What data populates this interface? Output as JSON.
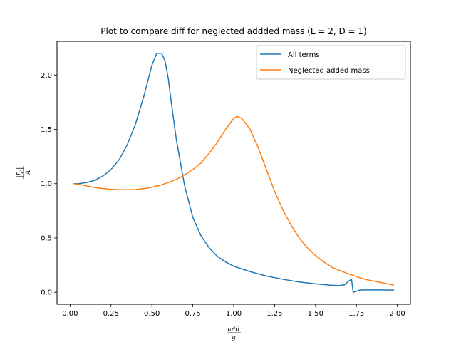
{
  "chart_data": {
    "type": "line",
    "title": "Plot to compare diff for neglected addded mass (L = 2, D = 1)",
    "xlabel": {
      "numerator": "ω²d",
      "denominator": "g"
    },
    "ylabel": {
      "numerator": "|ξ₂|",
      "denominator": "A"
    },
    "xlim": [
      -0.08,
      2.08
    ],
    "ylim": [
      -0.11,
      2.31
    ],
    "xticks": [
      0.0,
      0.25,
      0.5,
      0.75,
      1.0,
      1.25,
      1.5,
      1.75,
      2.0
    ],
    "xtick_labels": [
      "0.00",
      "0.25",
      "0.50",
      "0.75",
      "1.00",
      "1.25",
      "1.50",
      "1.75",
      "2.00"
    ],
    "yticks": [
      0.0,
      0.5,
      1.0,
      1.5,
      2.0
    ],
    "ytick_labels": [
      "0.0",
      "0.5",
      "1.0",
      "1.5",
      "2.0"
    ],
    "grid": false,
    "legend_position": "top-right",
    "series": [
      {
        "name": "All terms",
        "color": "#1f77b4",
        "points": [
          [
            0.02,
            1.0
          ],
          [
            0.05,
            1.0
          ],
          [
            0.1,
            1.01
          ],
          [
            0.15,
            1.03
          ],
          [
            0.2,
            1.07
          ],
          [
            0.25,
            1.13
          ],
          [
            0.3,
            1.22
          ],
          [
            0.35,
            1.36
          ],
          [
            0.4,
            1.55
          ],
          [
            0.45,
            1.8
          ],
          [
            0.5,
            2.09
          ],
          [
            0.53,
            2.2
          ],
          [
            0.56,
            2.2
          ],
          [
            0.58,
            2.13
          ],
          [
            0.6,
            1.97
          ],
          [
            0.62,
            1.73
          ],
          [
            0.65,
            1.4
          ],
          [
            0.7,
            0.98
          ],
          [
            0.75,
            0.69
          ],
          [
            0.8,
            0.52
          ],
          [
            0.85,
            0.41
          ],
          [
            0.9,
            0.33
          ],
          [
            0.95,
            0.28
          ],
          [
            1.0,
            0.24
          ],
          [
            1.1,
            0.19
          ],
          [
            1.2,
            0.15
          ],
          [
            1.3,
            0.12
          ],
          [
            1.4,
            0.095
          ],
          [
            1.5,
            0.078
          ],
          [
            1.6,
            0.065
          ],
          [
            1.65,
            0.062
          ],
          [
            1.68,
            0.07
          ],
          [
            1.7,
            0.1
          ],
          [
            1.72,
            0.12
          ],
          [
            1.73,
            0.0
          ],
          [
            1.75,
            0.01
          ],
          [
            1.77,
            0.02
          ],
          [
            1.8,
            0.022
          ],
          [
            1.9,
            0.022
          ],
          [
            1.98,
            0.02
          ]
        ]
      },
      {
        "name": "Neglected added mass",
        "color": "#ff7f0e",
        "points": [
          [
            0.02,
            1.0
          ],
          [
            0.05,
            0.995
          ],
          [
            0.1,
            0.98
          ],
          [
            0.15,
            0.965
          ],
          [
            0.2,
            0.955
          ],
          [
            0.25,
            0.948
          ],
          [
            0.3,
            0.944
          ],
          [
            0.35,
            0.944
          ],
          [
            0.4,
            0.946
          ],
          [
            0.45,
            0.954
          ],
          [
            0.5,
            0.967
          ],
          [
            0.55,
            0.985
          ],
          [
            0.6,
            1.01
          ],
          [
            0.65,
            1.04
          ],
          [
            0.7,
            1.08
          ],
          [
            0.75,
            1.13
          ],
          [
            0.8,
            1.19
          ],
          [
            0.85,
            1.28
          ],
          [
            0.9,
            1.38
          ],
          [
            0.95,
            1.5
          ],
          [
            1.0,
            1.6
          ],
          [
            1.02,
            1.62
          ],
          [
            1.05,
            1.6
          ],
          [
            1.1,
            1.5
          ],
          [
            1.15,
            1.33
          ],
          [
            1.2,
            1.13
          ],
          [
            1.25,
            0.93
          ],
          [
            1.3,
            0.76
          ],
          [
            1.35,
            0.62
          ],
          [
            1.4,
            0.5
          ],
          [
            1.45,
            0.41
          ],
          [
            1.5,
            0.34
          ],
          [
            1.55,
            0.28
          ],
          [
            1.6,
            0.23
          ],
          [
            1.7,
            0.17
          ],
          [
            1.8,
            0.12
          ],
          [
            1.9,
            0.09
          ],
          [
            1.98,
            0.065
          ]
        ]
      }
    ]
  }
}
